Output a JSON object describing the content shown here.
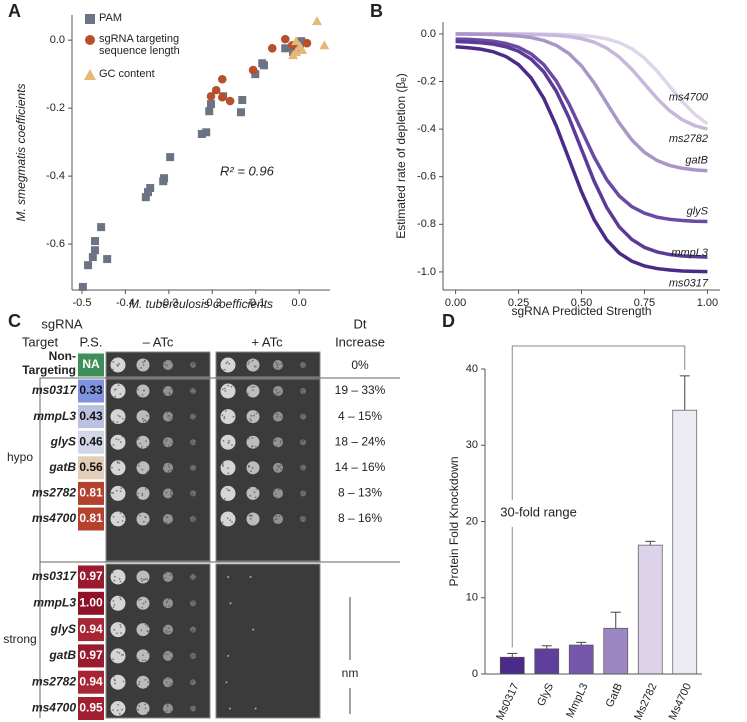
{
  "chart_data": [
    {
      "type": "scatter",
      "panel_label": "A",
      "xlabel": "M. tuberculosis coefficients",
      "ylabel": "M. smegmatis coefficients",
      "annotation": "R² = 0.96",
      "xlim": [
        -0.523,
        0.071
      ],
      "ylim": [
        -0.735,
        0.074
      ],
      "xticks": [
        -0.5,
        -0.4,
        -0.3,
        -0.2,
        -0.1,
        {
          "value": 0,
          "label": "0.0"
        }
      ],
      "yticks": [
        -0.6,
        -0.4,
        -0.2,
        {
          "value": 0,
          "label": "0.0"
        }
      ],
      "series": [
        {
          "name": "PAM",
          "color": "#6c7384",
          "marker": "square",
          "x": [
            -0.498,
            -0.486,
            -0.475,
            -0.47,
            -0.47,
            -0.456,
            -0.442,
            -0.353,
            -0.343,
            -0.348,
            -0.313,
            -0.311,
            -0.297,
            -0.224,
            -0.214,
            -0.207,
            -0.203,
            -0.175,
            -0.134,
            -0.131,
            -0.101,
            -0.085,
            -0.081,
            -0.032,
            -0.014,
            -0.002,
            0.002,
            0.005
          ],
          "values": [
            -0.726,
            -0.662,
            -0.638,
            -0.591,
            -0.618,
            -0.55,
            -0.644,
            -0.462,
            -0.435,
            -0.447,
            -0.415,
            -0.406,
            -0.344,
            -0.276,
            -0.271,
            -0.209,
            -0.188,
            -0.165,
            -0.212,
            -0.176,
            -0.1,
            -0.068,
            -0.074,
            -0.024,
            -0.035,
            -0.021,
            -0.012,
            -0.003
          ]
        },
        {
          "name": "sgRNA targeting sequence length",
          "color": "#b5502a",
          "marker": "circle",
          "x": [
            -0.203,
            -0.191,
            -0.177,
            -0.177,
            -0.159,
            -0.106,
            -0.062,
            -0.032,
            -0.016,
            0.018
          ],
          "values": [
            -0.165,
            -0.147,
            -0.115,
            -0.168,
            -0.179,
            -0.088,
            -0.024,
            0.003,
            -0.015,
            -0.009
          ]
        },
        {
          "name": "GC content",
          "color": "#e6b878",
          "marker": "triangle",
          "x": [
            0.041,
            0.058,
            -0.007,
            0.002,
            -0.014,
            -0.007,
            0.007
          ],
          "values": [
            0.056,
            -0.015,
            -0.003,
            -0.018,
            -0.044,
            -0.035,
            -0.029
          ]
        }
      ]
    },
    {
      "type": "line",
      "panel_label": "B",
      "xlabel": "sgRNA Predicted Strength",
      "ylabel": "Estimated rate of depletion (βₑ)",
      "xlim": [
        -0.05,
        1.05
      ],
      "ylim": [
        -1.076,
        0.05
      ],
      "xticks": [
        {
          "value": 0,
          "label": "0.00"
        },
        {
          "value": 0.25,
          "label": "0.25"
        },
        {
          "value": 0.5,
          "label": "0.50"
        },
        {
          "value": 0.75,
          "label": "0.75"
        },
        {
          "value": 1,
          "label": "1.00"
        }
      ],
      "yticks": [
        {
          "value": 0,
          "label": "0.0"
        },
        -0.2,
        -0.4,
        -0.6,
        -0.8,
        {
          "value": -1,
          "label": "-1.0"
        }
      ],
      "x": [
        0,
        0.05,
        0.1,
        0.15,
        0.2,
        0.25,
        0.3,
        0.35,
        0.4,
        0.45,
        0.5,
        0.55,
        0.6,
        0.65,
        0.7,
        0.75,
        0.8,
        0.85,
        0.9,
        0.95,
        1
      ],
      "series": [
        {
          "name": "ms4700",
          "color": "#ddd5ea",
          "values": [
            0,
            0,
            0,
            -0.0001,
            -0.0002,
            -0.0003,
            -0.0006,
            -0.0011,
            -0.002,
            -0.0036,
            -0.0065,
            -0.0117,
            -0.0209,
            -0.0366,
            -0.0624,
            -0.1019,
            -0.1559,
            -0.22,
            -0.2841,
            -0.3381,
            -0.3776
          ]
        },
        {
          "name": "ms2782",
          "color": "#c5b8dc",
          "values": [
            -4e-05,
            -0.0001,
            -0.0002,
            -0.0003,
            -0.0006,
            -0.0011,
            -0.0019,
            -0.0034,
            -0.0062,
            -0.0112,
            -0.0199,
            -0.0349,
            -0.0596,
            -0.0972,
            -0.1488,
            -0.21,
            -0.2712,
            -0.3228,
            -0.3604,
            -0.3851,
            -0.4001
          ]
        },
        {
          "name": "gatB",
          "color": "#a995c8",
          "values": [
            -0.0004,
            -0.0008,
            -0.0015,
            -0.0026,
            -0.0048,
            -0.0086,
            -0.0154,
            -0.0275,
            -0.0483,
            -0.0823,
            -0.1343,
            -0.2055,
            -0.29,
            -0.3745,
            -0.4457,
            -0.4977,
            -0.5317,
            -0.5525,
            -0.5646,
            -0.5714,
            -0.5752
          ]
        },
        {
          "name": "glyS",
          "color": "#6a4aa3",
          "values": [
            -0.022,
            -0.023,
            -0.026,
            -0.031,
            -0.04,
            -0.056,
            -0.084,
            -0.129,
            -0.198,
            -0.293,
            -0.405,
            -0.517,
            -0.612,
            -0.681,
            -0.726,
            -0.753,
            -0.77,
            -0.779,
            -0.784,
            -0.787,
            -0.788
          ]
        },
        {
          "name": "mmpL3",
          "color": "#5c3b98",
          "values": [
            -0.032,
            -0.034,
            -0.037,
            -0.043,
            -0.054,
            -0.073,
            -0.106,
            -0.159,
            -0.241,
            -0.352,
            -0.485,
            -0.618,
            -0.729,
            -0.811,
            -0.864,
            -0.897,
            -0.916,
            -0.927,
            -0.933,
            -0.936,
            -0.938
          ]
        },
        {
          "name": "ms0317",
          "color": "#4b2a8a",
          "values": [
            -0.054,
            -0.058,
            -0.064,
            -0.075,
            -0.095,
            -0.129,
            -0.185,
            -0.27,
            -0.387,
            -0.525,
            -0.663,
            -0.78,
            -0.865,
            -0.921,
            -0.955,
            -0.975,
            -0.986,
            -0.992,
            -0.996,
            -0.998,
            -0.999
          ]
        }
      ]
    },
    {
      "type": "bar",
      "panel_label": "D",
      "ylabel": "Protein Fold Knockdown",
      "annotation": "30-fold range",
      "categories": [
        "Ms0317",
        "GlyS",
        "MmpL3",
        "GatB",
        "Ms2782",
        "Ms4700"
      ],
      "values": [
        2.2,
        3.3,
        3.8,
        6.0,
        16.9,
        34.6
      ],
      "errors": [
        0.5,
        0.4,
        0.35,
        2.1,
        0.5,
        4.5
      ],
      "colors": [
        "#4b2a8a",
        "#5f3f9c",
        "#7658ab",
        "#9d87c2",
        "#dcd3ea",
        "#ecebf4"
      ],
      "ylim": [
        0,
        40
      ],
      "yticks": [
        0,
        10,
        20,
        30,
        40
      ]
    }
  ],
  "table": {
    "panel_label": "C",
    "header": {
      "sgrna": "sgRNA",
      "target": "Target",
      "ps": "P.S.",
      "minus_atc": "– ATc",
      "plus_atc": "+ ATc",
      "dt": "Dt",
      "increase": "Increase"
    },
    "control": {
      "target_lines": [
        "Non-",
        "Targeting"
      ],
      "ps": "NA",
      "color": "#3f8f5a",
      "dt": "0%"
    },
    "groups": [
      {
        "name": "hypo",
        "rows": [
          {
            "target": "ms0317",
            "ps": "0.33",
            "color": "#7f93e0",
            "dt": "19 – 33%"
          },
          {
            "target": "mmpL3",
            "ps": "0.43",
            "color": "#b9c2df",
            "dt": "4 – 15%"
          },
          {
            "target": "glyS",
            "ps": "0.46",
            "color": "#d2d6e6",
            "dt": "18 – 24%"
          },
          {
            "target": "gatB",
            "ps": "0.56",
            "color": "#e4cdb8",
            "dt": "14 – 16%"
          },
          {
            "target": "ms2782",
            "ps": "0.81",
            "color": "#b5402e",
            "dt": "8 – 13%"
          },
          {
            "target": "ms4700",
            "ps": "0.81",
            "color": "#b5402e",
            "dt": "8 – 16%"
          }
        ]
      },
      {
        "name": "strong",
        "dt": "nm",
        "rows": [
          {
            "target": "ms0317",
            "ps": "0.97",
            "color": "#9b1b2e"
          },
          {
            "target": "mmpL3",
            "ps": "1.00",
            "color": "#8f1228"
          },
          {
            "target": "glyS",
            "ps": "0.94",
            "color": "#a82634"
          },
          {
            "target": "gatB",
            "ps": "0.97",
            "color": "#9b1b2e"
          },
          {
            "target": "ms2782",
            "ps": "0.94",
            "color": "#a82634"
          },
          {
            "target": "ms4700",
            "ps": "0.95",
            "color": "#a21f31"
          }
        ]
      }
    ]
  }
}
